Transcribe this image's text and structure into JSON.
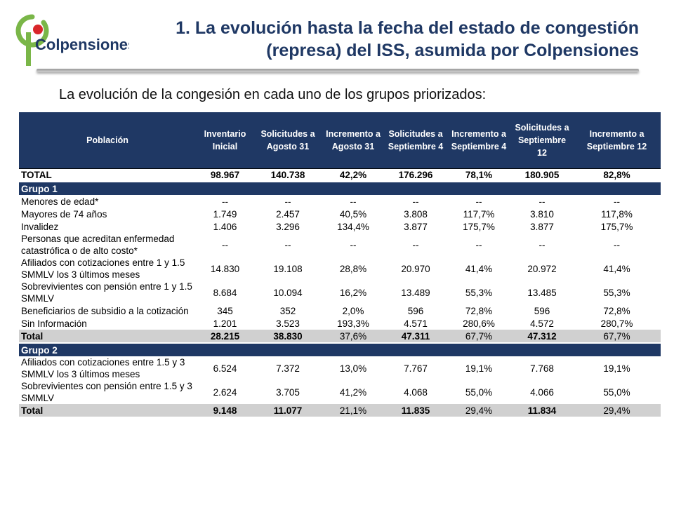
{
  "title": "1. La evolución hasta la fecha del estado de congestión (represa) del ISS, asumida por Colpensiones",
  "logo_text": "Colpensiones",
  "subtitle": "La evolución de la congesión en cada uno de los grupos priorizados:",
  "colors": {
    "header_bg": "#1f3864",
    "title": "#1f3864",
    "logo_green": "#7ab648",
    "logo_red": "#d9262a",
    "subtotal_bg": "#d0d0d0"
  },
  "table": {
    "headers": [
      "Población",
      "Inventario Inicial",
      "Solicitudes a Agosto 31",
      "Incremento a Agosto 31",
      "Solicitudes a Septiembre 4",
      "Incremento a Septiembre 4",
      "Solicitudes a Septiembre 12",
      "Incremento a Septiembre 12"
    ],
    "total": [
      "TOTAL",
      "98.967",
      "140.738",
      "42,2%",
      "176.296",
      "78,1%",
      "180.905",
      "82,8%"
    ],
    "group1": {
      "label": "Grupo 1",
      "rows": [
        [
          "Menores de edad*",
          "--",
          "--",
          "--",
          "--",
          "--",
          "--",
          "--"
        ],
        [
          "Mayores de 74 años",
          "1.749",
          "2.457",
          "40,5%",
          "3.808",
          "117,7%",
          "3.810",
          "117,8%"
        ],
        [
          "Invalidez",
          "1.406",
          "3.296",
          "134,4%",
          "3.877",
          "175,7%",
          "3.877",
          "175,7%"
        ],
        [
          "Personas que acreditan enfermedad catastrófica o de alto costo*",
          "--",
          "--",
          "--",
          "--",
          "--",
          "--",
          "--"
        ],
        [
          "Afiliados con cotizaciones entre 1 y 1.5 SMMLV los 3 últimos meses",
          "14.830",
          "19.108",
          "28,8%",
          "20.970",
          "41,4%",
          "20.972",
          "41,4%"
        ],
        [
          "Sobrevivientes con pensión entre 1 y 1.5 SMMLV",
          "8.684",
          "10.094",
          "16,2%",
          "13.489",
          "55,3%",
          "13.485",
          "55,3%"
        ],
        [
          "Beneficiarios de subsidio a la cotización",
          "345",
          "352",
          "2,0%",
          "596",
          "72,8%",
          "596",
          "72,8%"
        ],
        [
          "Sin Información",
          "1.201",
          "3.523",
          "193,3%",
          "4.571",
          "280,6%",
          "4.572",
          "280,7%"
        ]
      ],
      "subtotal": [
        "Total",
        "28.215",
        "38.830",
        "37,6%",
        "47.311",
        "67,7%",
        "47.312",
        "67,7%"
      ]
    },
    "group2": {
      "label": "Grupo 2",
      "rows": [
        [
          "Afiliados con cotizaciones entre 1.5 y 3 SMMLV los 3 últimos meses",
          "6.524",
          "7.372",
          "13,0%",
          "7.767",
          "19,1%",
          "7.768",
          "19,1%"
        ],
        [
          "Sobrevivientes con pensión entre 1.5 y 3 SMMLV",
          "2.624",
          "3.705",
          "41,2%",
          "4.068",
          "55,0%",
          "4.066",
          "55,0%"
        ]
      ],
      "subtotal": [
        "Total",
        "9.148",
        "11.077",
        "21,1%",
        "11.835",
        "29,4%",
        "11.834",
        "29,4%"
      ]
    }
  }
}
